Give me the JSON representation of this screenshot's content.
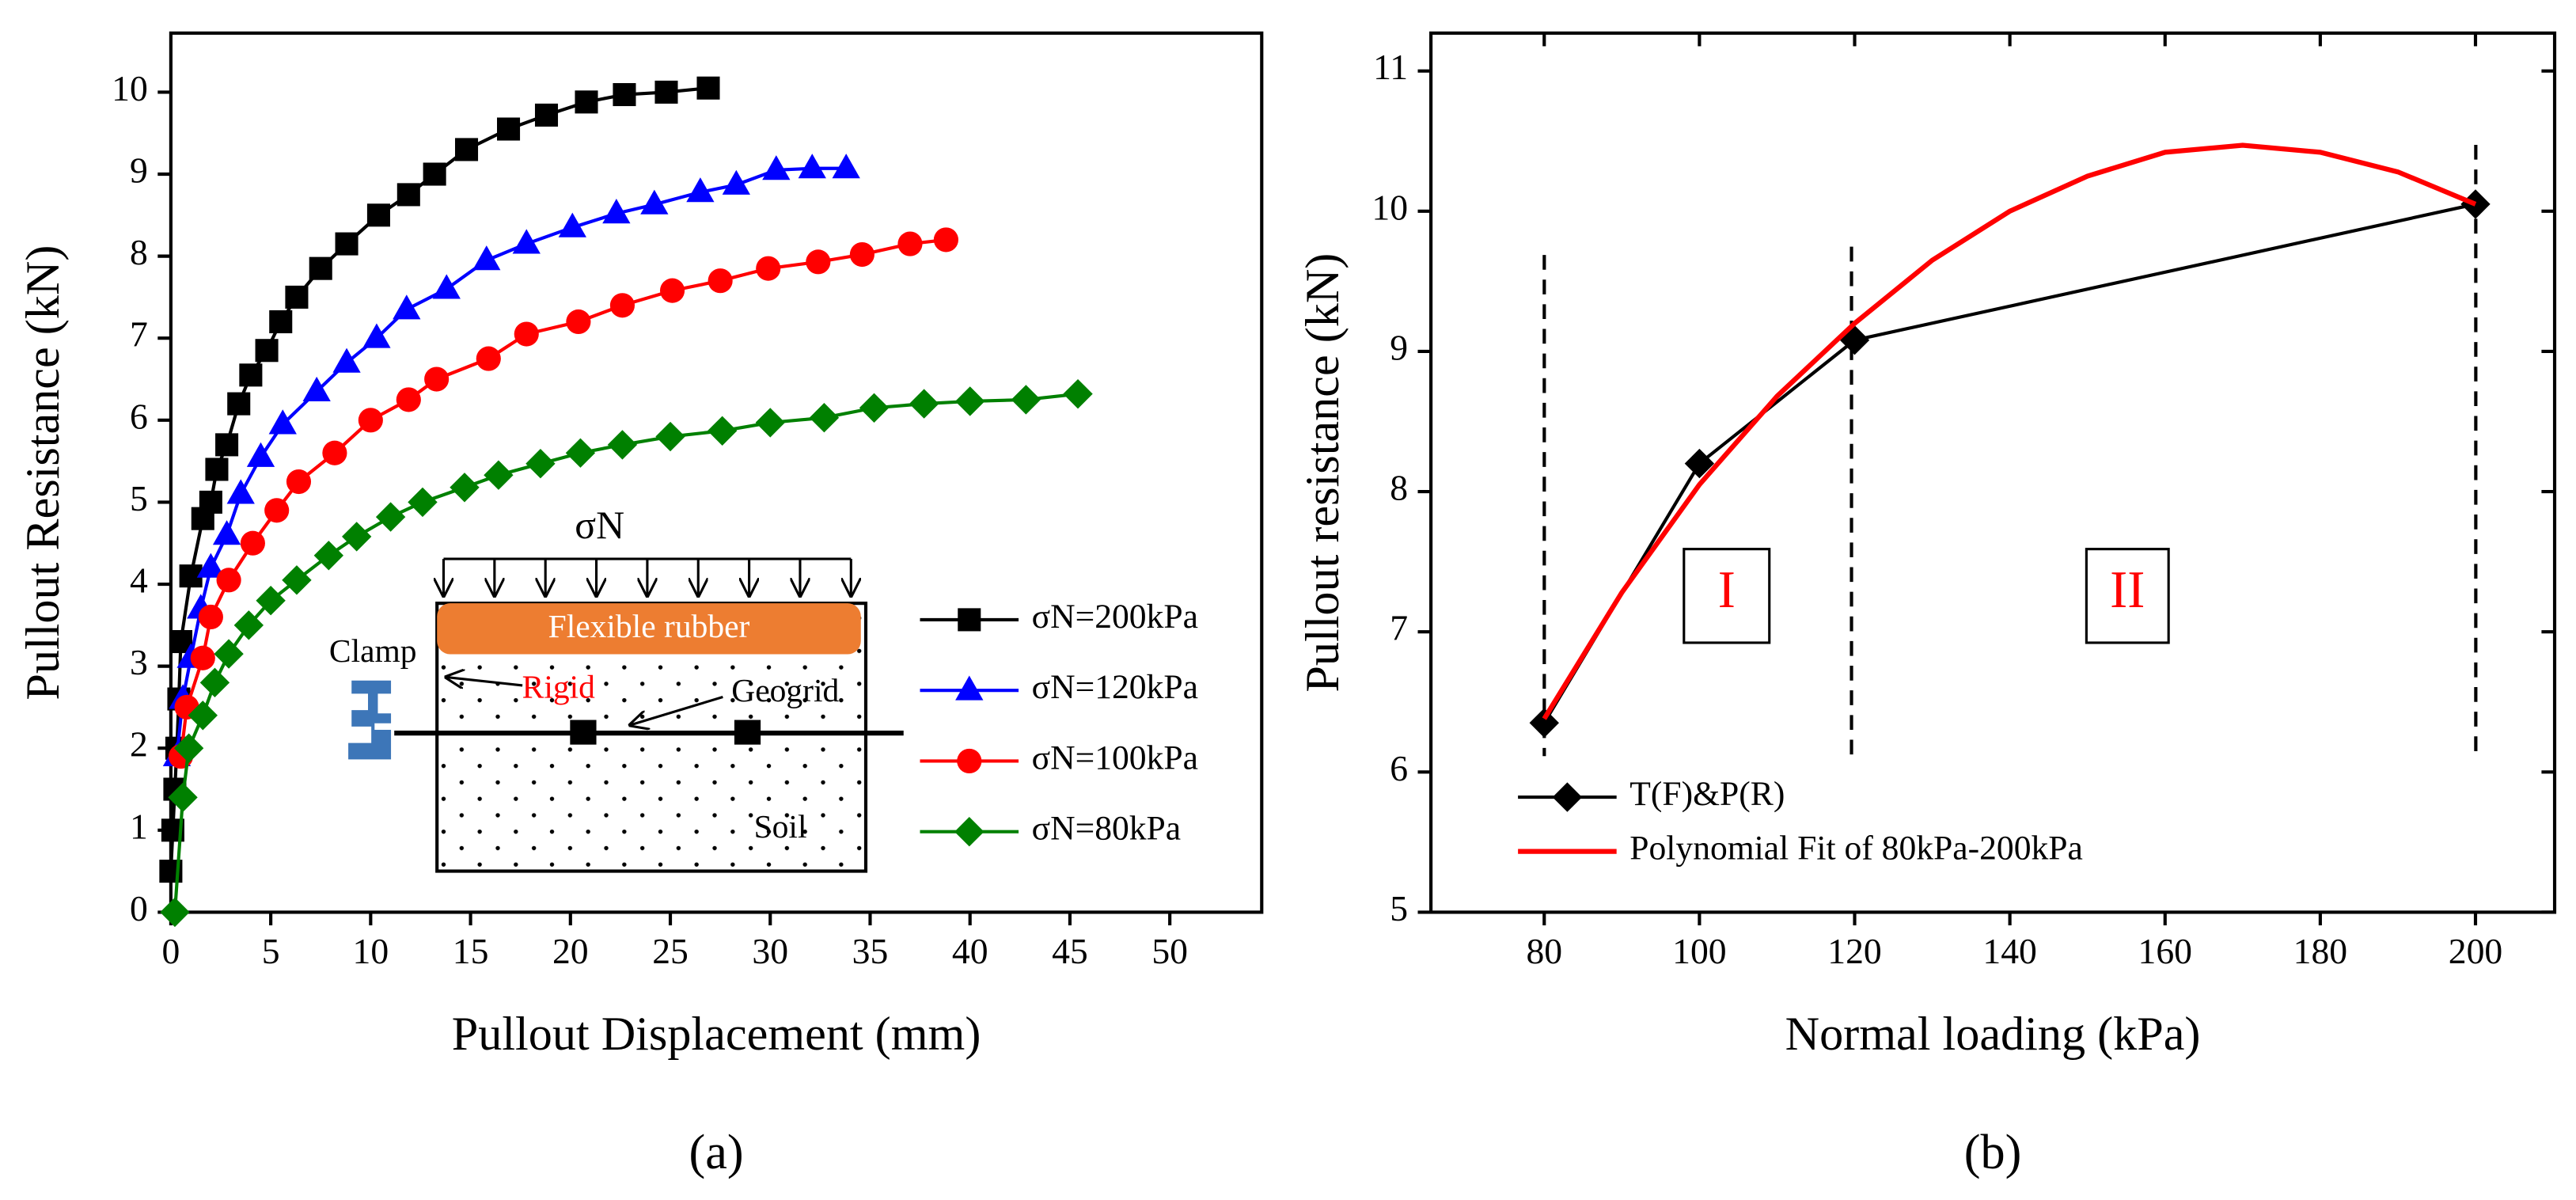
{
  "chart_data": [
    {
      "type": "line",
      "label": "(a)",
      "x_label": "Pullout Displacement (mm)",
      "y_label": "Pullout Resistance (kN)",
      "xlim": [
        0,
        54.6
      ],
      "ylim": [
        0,
        10.72
      ],
      "xticks": [
        0,
        5,
        10,
        15,
        20,
        25,
        30,
        35,
        40,
        45,
        50
      ],
      "yticks": [
        0,
        1,
        2,
        3,
        4,
        5,
        6,
        7,
        8,
        9,
        10
      ],
      "annotations": [
        "σN",
        "Flexible rubber",
        "Clamp",
        "Rigid",
        "Geogrid",
        "Soil"
      ],
      "series": [
        {
          "name": "σN=200kPa",
          "color": "#000000",
          "marker": "square",
          "x": [
            0,
            0.1,
            0.2,
            0.3,
            0.4,
            0.5,
            1.0,
            1.6,
            2.0,
            2.3,
            2.8,
            3.4,
            4.0,
            4.8,
            5.5,
            6.3,
            7.5,
            8.8,
            10.4,
            11.9,
            13.2,
            14.8,
            16.9,
            18.8,
            20.8,
            22.7,
            24.8,
            26.9
          ],
          "values": [
            0.5,
            1.0,
            1.5,
            2.0,
            2.6,
            3.3,
            4.1,
            4.8,
            5.0,
            5.4,
            5.7,
            6.2,
            6.55,
            6.85,
            7.2,
            7.5,
            7.85,
            8.15,
            8.5,
            8.75,
            9.0,
            9.3,
            9.55,
            9.72,
            9.88,
            9.97,
            10.0,
            10.05
          ]
        },
        {
          "name": "σN=120kPa",
          "color": "#0000ff",
          "marker": "triangle",
          "x": [
            0.3,
            0.6,
            1.0,
            1.5,
            2.0,
            2.8,
            3.5,
            4.5,
            5.6,
            7.3,
            8.8,
            10.3,
            11.8,
            13.8,
            15.8,
            17.8,
            20.1,
            22.3,
            24.2,
            26.5,
            28.3,
            30.3,
            32.1,
            33.8
          ],
          "values": [
            1.9,
            2.6,
            3.1,
            3.7,
            4.2,
            4.6,
            5.1,
            5.55,
            5.95,
            6.35,
            6.7,
            7.0,
            7.35,
            7.6,
            7.95,
            8.15,
            8.35,
            8.52,
            8.63,
            8.78,
            8.87,
            9.05,
            9.07,
            9.07
          ]
        },
        {
          "name": "σN=100kPa",
          "color": "#ff0000",
          "marker": "circle",
          "x": [
            0.5,
            0.8,
            1.6,
            2.0,
            2.9,
            4.1,
            5.3,
            6.4,
            8.2,
            10.0,
            11.9,
            13.3,
            15.9,
            17.8,
            20.4,
            22.6,
            25.1,
            27.5,
            29.9,
            32.4,
            34.6,
            37.0,
            38.8
          ],
          "values": [
            1.9,
            2.5,
            3.1,
            3.6,
            4.05,
            4.5,
            4.9,
            5.25,
            5.6,
            6.0,
            6.25,
            6.5,
            6.75,
            7.05,
            7.2,
            7.4,
            7.58,
            7.7,
            7.85,
            7.93,
            8.02,
            8.15,
            8.2
          ]
        },
        {
          "name": "σN=80kPa",
          "color": "#008000",
          "marker": "diamond",
          "x": [
            0.2,
            0.6,
            0.9,
            1.6,
            2.2,
            2.9,
            3.9,
            5.0,
            6.3,
            7.9,
            9.3,
            11.0,
            12.6,
            14.7,
            16.4,
            18.5,
            20.5,
            22.6,
            25.0,
            27.6,
            30.0,
            32.7,
            35.2,
            37.7,
            40.0,
            42.8,
            45.4
          ],
          "values": [
            0.0,
            1.4,
            2.0,
            2.4,
            2.8,
            3.15,
            3.5,
            3.8,
            4.05,
            4.35,
            4.58,
            4.82,
            5.0,
            5.18,
            5.33,
            5.47,
            5.6,
            5.7,
            5.8,
            5.87,
            5.97,
            6.03,
            6.15,
            6.2,
            6.23,
            6.25,
            6.32
          ]
        }
      ]
    },
    {
      "type": "line",
      "label": "(b)",
      "x_label": "Normal loading (kPa)",
      "y_label": "Pullout resistance (kN)",
      "xlim": [
        65.4,
        210.2
      ],
      "ylim": [
        5,
        11.27
      ],
      "xticks": [
        80,
        100,
        120,
        140,
        160,
        180,
        200
      ],
      "yticks": [
        5,
        6,
        7,
        8,
        9,
        10,
        11
      ],
      "annotations": [
        "I",
        "II"
      ],
      "series": [
        {
          "name": "T(F)&P(R)",
          "color": "#000000",
          "marker": "diamond",
          "x": [
            80,
            100,
            120,
            200
          ],
          "values": [
            6.35,
            8.2,
            9.08,
            10.05
          ]
        },
        {
          "name": "Polynomial Fit of 80kPa-200kPa",
          "color": "#ff0000",
          "marker": "none",
          "x": [
            80,
            90,
            100,
            110,
            120,
            130,
            140,
            150,
            160,
            170,
            180,
            190,
            200
          ],
          "values": [
            6.38,
            7.28,
            8.05,
            8.68,
            9.2,
            9.65,
            10.0,
            10.25,
            10.42,
            10.47,
            10.42,
            10.28,
            10.05
          ]
        }
      ]
    }
  ]
}
